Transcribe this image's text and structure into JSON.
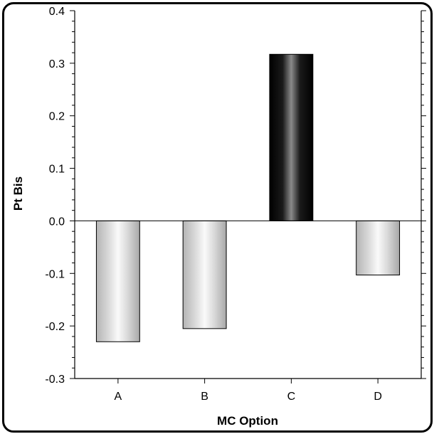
{
  "chart_data": {
    "type": "bar",
    "title": "",
    "xlabel": "MC Option",
    "ylabel": "Pt Bis",
    "categories": [
      "A",
      "B",
      "C",
      "D"
    ],
    "values": [
      -0.23,
      -0.205,
      0.317,
      -0.103
    ],
    "ylim": [
      -0.3,
      0.4
    ],
    "yticks": [
      0.4,
      0.3,
      0.2,
      0.1,
      0.0,
      -0.1,
      -0.2,
      -0.3
    ],
    "ytick_labels": [
      "0.4",
      "0.3",
      "0.2",
      "0.1",
      "0.0",
      "-0.1",
      "-0.2",
      "-0.3"
    ],
    "grid": false,
    "legend": "none",
    "colors": {
      "negative_bar": "#c8c8c8",
      "positive_bar": "#111111",
      "axis": "#000000"
    }
  }
}
